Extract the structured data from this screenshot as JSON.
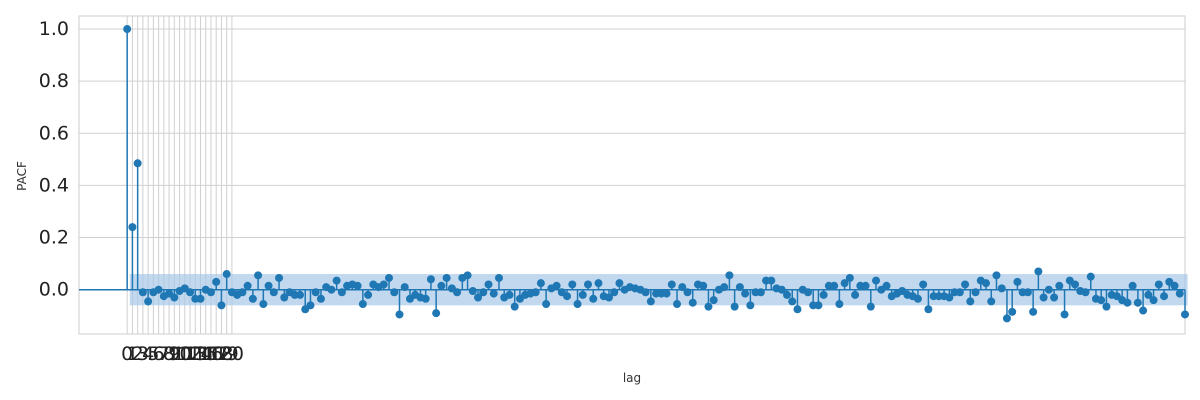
{
  "chart_data": {
    "type": "stem",
    "title": "",
    "xlabel": "lag",
    "ylabel": "PACF",
    "ylim": [
      -0.17,
      1.05
    ],
    "xlim": [
      -9.2,
      202
    ],
    "yticks": [
      0.0,
      0.2,
      0.4,
      0.6,
      0.8,
      1.0
    ],
    "ytick_labels": [
      "0.0",
      "0.2",
      "0.4",
      "0.6",
      "0.8",
      "1.0"
    ],
    "xticks": [
      0,
      1,
      2,
      3,
      4,
      5,
      6,
      7,
      8,
      9,
      10,
      11,
      12,
      13,
      14,
      15,
      16,
      17,
      18,
      19,
      20
    ],
    "xtick_labels": [
      "0",
      "1",
      "2",
      "3",
      "4",
      "5",
      "6",
      "7",
      "8",
      "9",
      "10",
      "11",
      "12",
      "13",
      "14",
      "15",
      "16",
      "17",
      "18",
      "19",
      "20"
    ],
    "grid": true,
    "confidence_band": [
      -0.06,
      0.06
    ],
    "colors": {
      "series": "#1f77b4",
      "band": "#a6c8e8",
      "grid": "#d0d0d0",
      "axis_line": "#1f77b4"
    },
    "series": [
      {
        "x_start": 0,
        "values": [
          1.0,
          0.24,
          0.485,
          -0.01,
          -0.045,
          -0.01,
          0.0,
          -0.025,
          -0.015,
          -0.03,
          -0.005,
          0.005,
          -0.01,
          -0.035,
          -0.035,
          0.0,
          -0.01,
          0.03,
          -0.06,
          0.06,
          -0.01,
          -0.02,
          -0.01,
          0.015,
          -0.035,
          0.055,
          -0.055,
          0.015,
          -0.01,
          0.045,
          -0.03,
          -0.01,
          -0.02,
          -0.02,
          -0.075,
          -0.06,
          -0.01,
          -0.035,
          0.01,
          0.0,
          0.035,
          -0.01,
          0.015,
          0.02,
          0.015,
          -0.055,
          -0.02,
          0.02,
          0.01,
          0.02,
          0.045,
          -0.01,
          -0.095,
          0.01,
          -0.035,
          -0.02,
          -0.03,
          -0.035,
          0.04,
          -0.09,
          0.015,
          0.045,
          0.005,
          -0.01,
          0.045,
          0.055,
          -0.005,
          -0.03,
          -0.01,
          0.02,
          -0.015,
          0.045,
          -0.03,
          -0.02,
          -0.065,
          -0.035,
          -0.02,
          -0.015,
          -0.01,
          0.025,
          -0.055,
          0.005,
          0.015,
          -0.01,
          -0.025,
          0.02,
          -0.055,
          -0.02,
          0.02,
          -0.035,
          0.025,
          -0.025,
          -0.03,
          -0.01,
          0.025,
          0.0,
          0.01,
          0.005,
          0.0,
          -0.01,
          -0.045,
          -0.015,
          -0.015,
          -0.015,
          0.02,
          -0.055,
          0.01,
          -0.01,
          -0.05,
          0.02,
          0.015,
          -0.065,
          -0.04,
          0.0,
          0.01,
          0.055,
          -0.065,
          0.01,
          -0.015,
          -0.06,
          -0.01,
          -0.01,
          0.035,
          0.035,
          0.005,
          0.0,
          -0.02,
          -0.045,
          -0.075,
          0.0,
          -0.01,
          -0.06,
          -0.06,
          -0.02,
          0.015,
          0.015,
          -0.055,
          0.025,
          0.045,
          -0.02,
          0.015,
          0.015,
          -0.065,
          0.035,
          0.0,
          0.015,
          -0.025,
          -0.015,
          -0.005,
          -0.02,
          -0.025,
          -0.035,
          0.02,
          -0.075,
          -0.025,
          -0.025,
          -0.025,
          -0.03,
          -0.01,
          -0.01,
          0.02,
          -0.045,
          -0.01,
          0.035,
          0.025,
          -0.045,
          0.055,
          0.005,
          -0.11,
          -0.085,
          0.03,
          -0.01,
          -0.01,
          -0.085,
          0.07,
          -0.03,
          0.0,
          -0.03,
          0.015,
          -0.095,
          0.035,
          0.02,
          -0.005,
          -0.01,
          0.05,
          -0.035,
          -0.04,
          -0.065,
          -0.02,
          -0.025,
          -0.04,
          -0.05,
          0.015,
          -0.05,
          -0.08,
          -0.02,
          -0.04,
          0.02,
          -0.025,
          0.03,
          0.015,
          -0.015,
          -0.095
        ]
      }
    ]
  }
}
